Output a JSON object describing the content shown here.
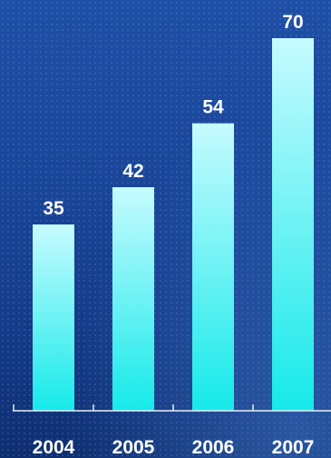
{
  "chart_data": {
    "type": "bar",
    "categories": [
      "2004",
      "2005",
      "2006",
      "2007"
    ],
    "values": [
      35,
      42,
      54,
      70
    ],
    "title": "",
    "xlabel": "",
    "ylabel": "",
    "ylim": [
      0,
      70
    ],
    "grid": false,
    "data_labels": true,
    "bar_color_top": "#c6fbff",
    "bar_color_bottom": "#16e9e9",
    "axis_color": "#e8eef8",
    "label_color": "#ffffff",
    "background_color": "#1a4699"
  }
}
